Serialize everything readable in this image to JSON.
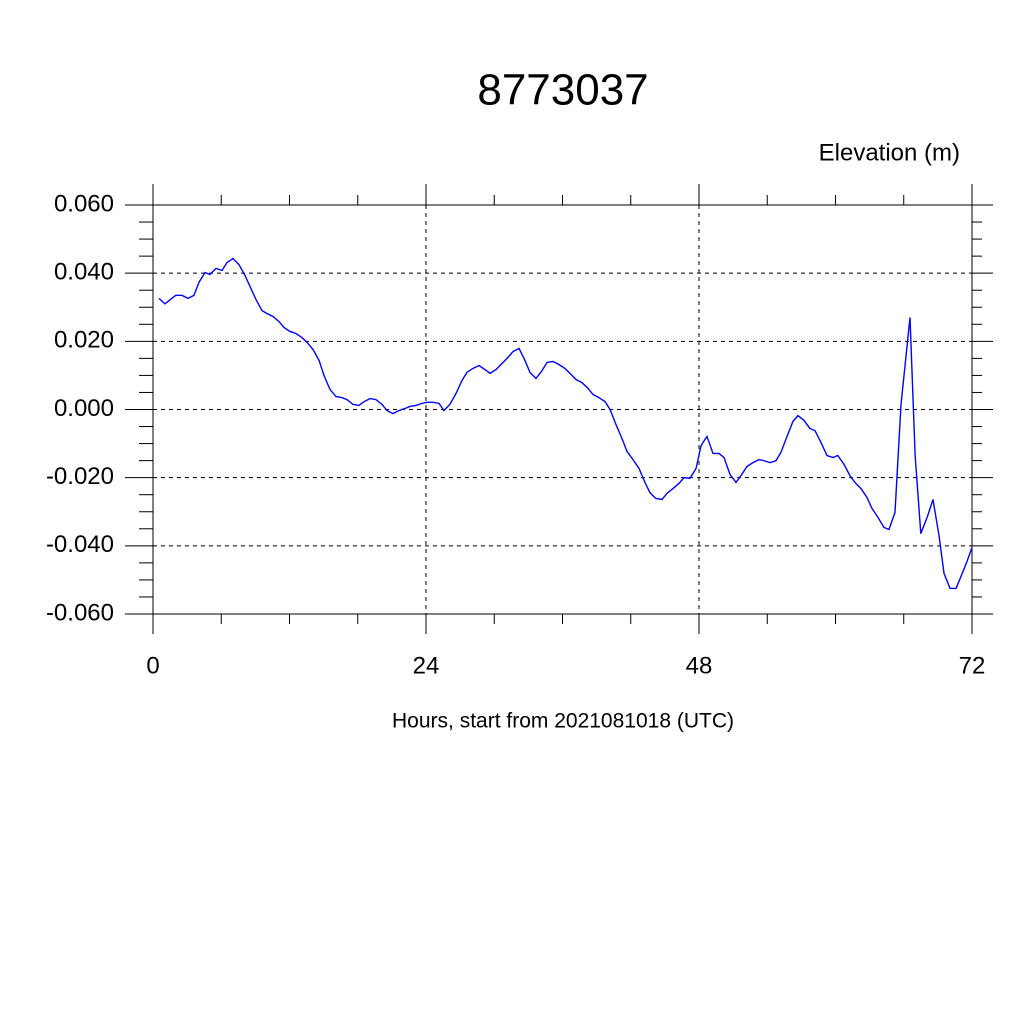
{
  "chart_data": {
    "type": "line",
    "title": "8773037",
    "subtitle": "Elevation (m)",
    "x_label": "Hours, start from 2021081018 (UTC)",
    "xlim": [
      0,
      72
    ],
    "xticks": [
      0,
      24,
      48,
      72
    ],
    "xminorticks": [
      6,
      12,
      18,
      30,
      36,
      42,
      54,
      60,
      66
    ],
    "ylim": [
      -0.06,
      0.06
    ],
    "yticks": [
      {
        "value": -0.06,
        "label": "-0.060"
      },
      {
        "value": -0.04,
        "label": "-0.040"
      },
      {
        "value": -0.02,
        "label": "-0.020"
      },
      {
        "value": 0,
        "label": "0.000"
      },
      {
        "value": 0.02,
        "label": "0.020"
      },
      {
        "value": 0.04,
        "label": "0.040"
      },
      {
        "value": 0.06,
        "label": "0.060"
      }
    ],
    "yminorticks": [
      -0.055,
      -0.05,
      -0.045,
      -0.035,
      -0.03,
      -0.025,
      -0.015,
      -0.01,
      -0.005,
      0.005,
      0.01,
      0.015,
      0.025,
      0.03,
      0.035,
      0.045,
      0.05,
      0.055
    ],
    "grid": true,
    "series": [
      {
        "color": "#0000ff",
        "x": [
          0.53,
          1.05,
          2.0,
          2.55,
          3.08,
          3.6,
          4.04,
          4.57,
          5.0,
          5.54,
          6.07,
          6.5,
          7.03,
          7.56,
          8.09,
          8.53,
          9.05,
          9.58,
          10.0,
          10.55,
          11.08,
          11.5,
          12.04,
          12.57,
          13.1,
          13.54,
          14.07,
          14.6,
          15.03,
          15.56,
          16.09,
          16.6,
          17.05,
          17.58,
          18.1,
          18.55,
          19.08,
          19.6,
          20.13,
          20.57,
          21.1,
          21.63,
          22.15,
          22.59,
          23.12,
          23.65,
          24.09,
          24.6,
          25.14,
          25.58,
          26.1,
          26.64,
          27.16,
          27.6,
          28.1,
          28.66,
          29.19,
          29.63,
          30.15,
          30.68,
          31.21,
          31.65,
          32.18,
          32.7,
          33.14,
          33.67,
          34.2,
          34.64,
          35.16,
          35.69,
          36.22,
          36.66,
          37.19,
          37.71,
          38.24,
          38.68,
          39.2,
          39.74,
          40.18,
          40.7,
          41.23,
          41.67,
          42.2,
          42.73,
          43.25,
          43.69,
          44.2,
          44.75,
          45.19,
          45.71,
          46.24,
          46.68,
          47.2,
          47.74,
          48.18,
          48.7,
          49.23,
          49.76,
          50.2,
          50.73,
          51.25,
          51.69,
          52.22,
          52.75,
          53.27,
          53.71,
          54.24,
          54.77,
          55.2,
          55.74,
          56.26,
          56.7,
          57.23,
          57.76,
          58.2,
          58.73,
          59.25,
          59.78,
          60.2,
          60.75,
          61.27,
          61.71,
          62.24,
          62.77,
          63.2,
          63.74,
          64.26,
          64.7,
          65.23,
          65.76,
          66.55,
          67.0,
          67.5,
          68.05,
          68.57,
          69.1,
          69.54,
          70.07,
          70.6,
          71.03,
          71.56,
          72.0
        ],
        "values": [
          0.0326,
          0.031,
          0.0335,
          0.0335,
          0.0326,
          0.0335,
          0.0373,
          0.0402,
          0.0396,
          0.0414,
          0.0408,
          0.0431,
          0.0443,
          0.0425,
          0.0393,
          0.0361,
          0.0323,
          0.029,
          0.0282,
          0.0273,
          0.0258,
          0.0241,
          0.0229,
          0.0223,
          0.0211,
          0.0197,
          0.0176,
          0.0144,
          0.01,
          0.0059,
          0.0038,
          0.0035,
          0.0029,
          0.0015,
          0.0012,
          0.0023,
          0.0032,
          0.0029,
          0.0015,
          -0.0003,
          -0.0012,
          -0.0003,
          0.0003,
          0.0009,
          0.0012,
          0.0018,
          0.0021,
          0.0021,
          0.0018,
          -0.0003,
          0.0015,
          0.0047,
          0.0085,
          0.0109,
          0.012,
          0.0129,
          0.0117,
          0.0106,
          0.0117,
          0.0135,
          0.0153,
          0.017,
          0.0179,
          0.0144,
          0.0109,
          0.0091,
          0.0114,
          0.0138,
          0.0141,
          0.0132,
          0.012,
          0.0106,
          0.0088,
          0.0079,
          0.0062,
          0.0044,
          0.0035,
          0.0023,
          0.0,
          -0.0044,
          -0.0085,
          -0.0123,
          -0.0147,
          -0.0173,
          -0.0214,
          -0.0244,
          -0.0261,
          -0.0264,
          -0.0246,
          -0.0232,
          -0.0217,
          -0.02,
          -0.0202,
          -0.0173,
          -0.0106,
          -0.0079,
          -0.0129,
          -0.0129,
          -0.0141,
          -0.0191,
          -0.0214,
          -0.0194,
          -0.0167,
          -0.0156,
          -0.0147,
          -0.015,
          -0.0156,
          -0.015,
          -0.0126,
          -0.0079,
          -0.0035,
          -0.0018,
          -0.0032,
          -0.0056,
          -0.0062,
          -0.0097,
          -0.0135,
          -0.0141,
          -0.0135,
          -0.0161,
          -0.0194,
          -0.0214,
          -0.0232,
          -0.0258,
          -0.029,
          -0.0317,
          -0.0346,
          -0.0352,
          -0.0302,
          0.0015,
          0.027,
          -0.0135,
          -0.0364,
          -0.0317,
          -0.0264,
          -0.037,
          -0.0481,
          -0.0525,
          -0.0525,
          -0.049,
          -0.0446,
          -0.0405
        ]
      }
    ]
  }
}
